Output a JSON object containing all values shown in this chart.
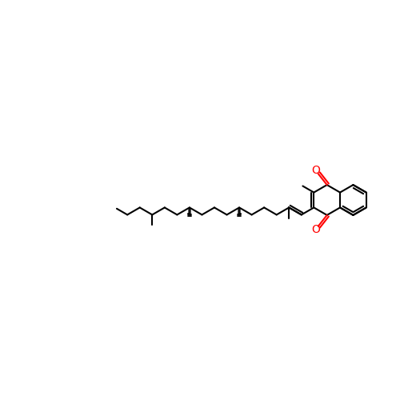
{
  "bg_color": "#ffffff",
  "bond_color": "#000000",
  "oxygen_color": "#ff0000",
  "bond_width": 1.5,
  "figsize": [
    5.0,
    5.0
  ],
  "dpi": 100,
  "xlim": [
    0,
    10
  ],
  "ylim": [
    2,
    8
  ]
}
